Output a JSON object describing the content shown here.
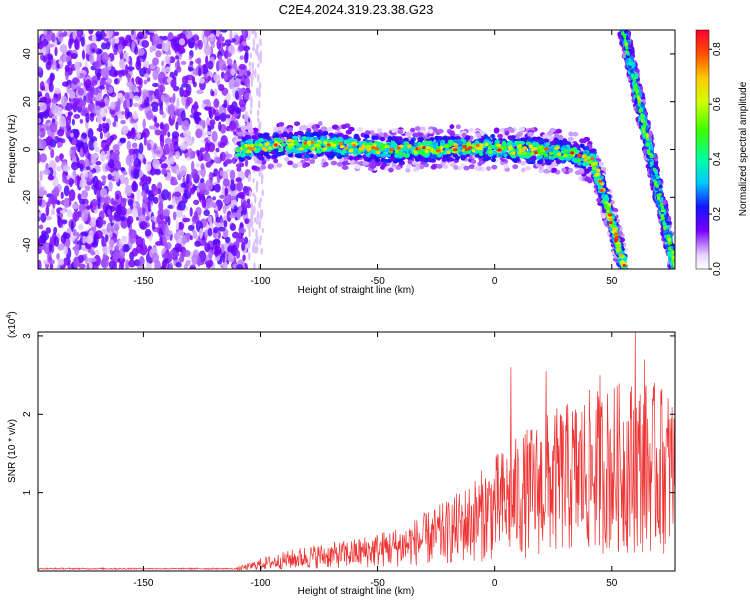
{
  "chart_data": [
    {
      "type": "heatmap",
      "title": "C2E4.2024.319.23.38.G23",
      "xlabel": "Height of straight line (km)",
      "ylabel": "Frequency (Hz)",
      "xlim": [
        -195,
        77
      ],
      "ylim": [
        -50,
        50
      ],
      "xticks": [
        -150,
        -100,
        -50,
        0,
        50
      ],
      "yticks": [
        -40,
        -20,
        0,
        20,
        40
      ],
      "colorbar": {
        "label": "Normalized spectral amplitude",
        "range": [
          0,
          0.87
        ],
        "ticks": [
          "0.0",
          "0.2",
          "0.4",
          "0.6",
          "0.8"
        ]
      },
      "features": {
        "noise_region_x": [
          -195,
          -105
        ],
        "band_path": [
          [
            -110,
            0
          ],
          [
            -90,
            2
          ],
          [
            -70,
            2
          ],
          [
            -50,
            0
          ],
          [
            -30,
            0
          ],
          [
            -10,
            1
          ],
          [
            10,
            0
          ],
          [
            30,
            -1
          ],
          [
            42,
            -5
          ],
          [
            47,
            -20
          ],
          [
            50,
            -30
          ],
          [
            54,
            -45
          ],
          [
            56,
            -50
          ]
        ],
        "diagonal_path": [
          [
            55,
            50
          ],
          [
            77,
            -50
          ]
        ]
      }
    },
    {
      "type": "line",
      "xlabel": "Height of straight line (km)",
      "ylabel": "SNR (10 * v/v)",
      "y_multiplier": "(x10",
      "y_multiplier_exp": "4",
      "y_multiplier_close": ")",
      "xlim": [
        -195,
        77
      ],
      "ylim": [
        0,
        3.05
      ],
      "xticks": [
        -150,
        -100,
        -50,
        0,
        50
      ],
      "yticks": [
        1,
        2,
        3
      ],
      "series_color": "#ee3333",
      "envelope_x": [
        -195,
        -110,
        -105,
        -100,
        -90,
        -80,
        -70,
        -60,
        -50,
        -40,
        -30,
        -20,
        -10,
        0,
        10,
        20,
        30,
        40,
        50,
        60,
        70,
        77
      ],
      "envelope_y": [
        0.03,
        0.03,
        0.06,
        0.1,
        0.15,
        0.2,
        0.22,
        0.25,
        0.3,
        0.35,
        0.45,
        0.55,
        0.7,
        0.9,
        1.05,
        1.2,
        1.3,
        1.4,
        1.45,
        1.5,
        1.45,
        1.4
      ],
      "peaks": [
        [
          7,
          2.6
        ],
        [
          22,
          2.55
        ],
        [
          28,
          2.0
        ],
        [
          45,
          2.5
        ],
        [
          60,
          3.05
        ],
        [
          64,
          2.7
        ],
        [
          71,
          2.3
        ]
      ]
    }
  ]
}
